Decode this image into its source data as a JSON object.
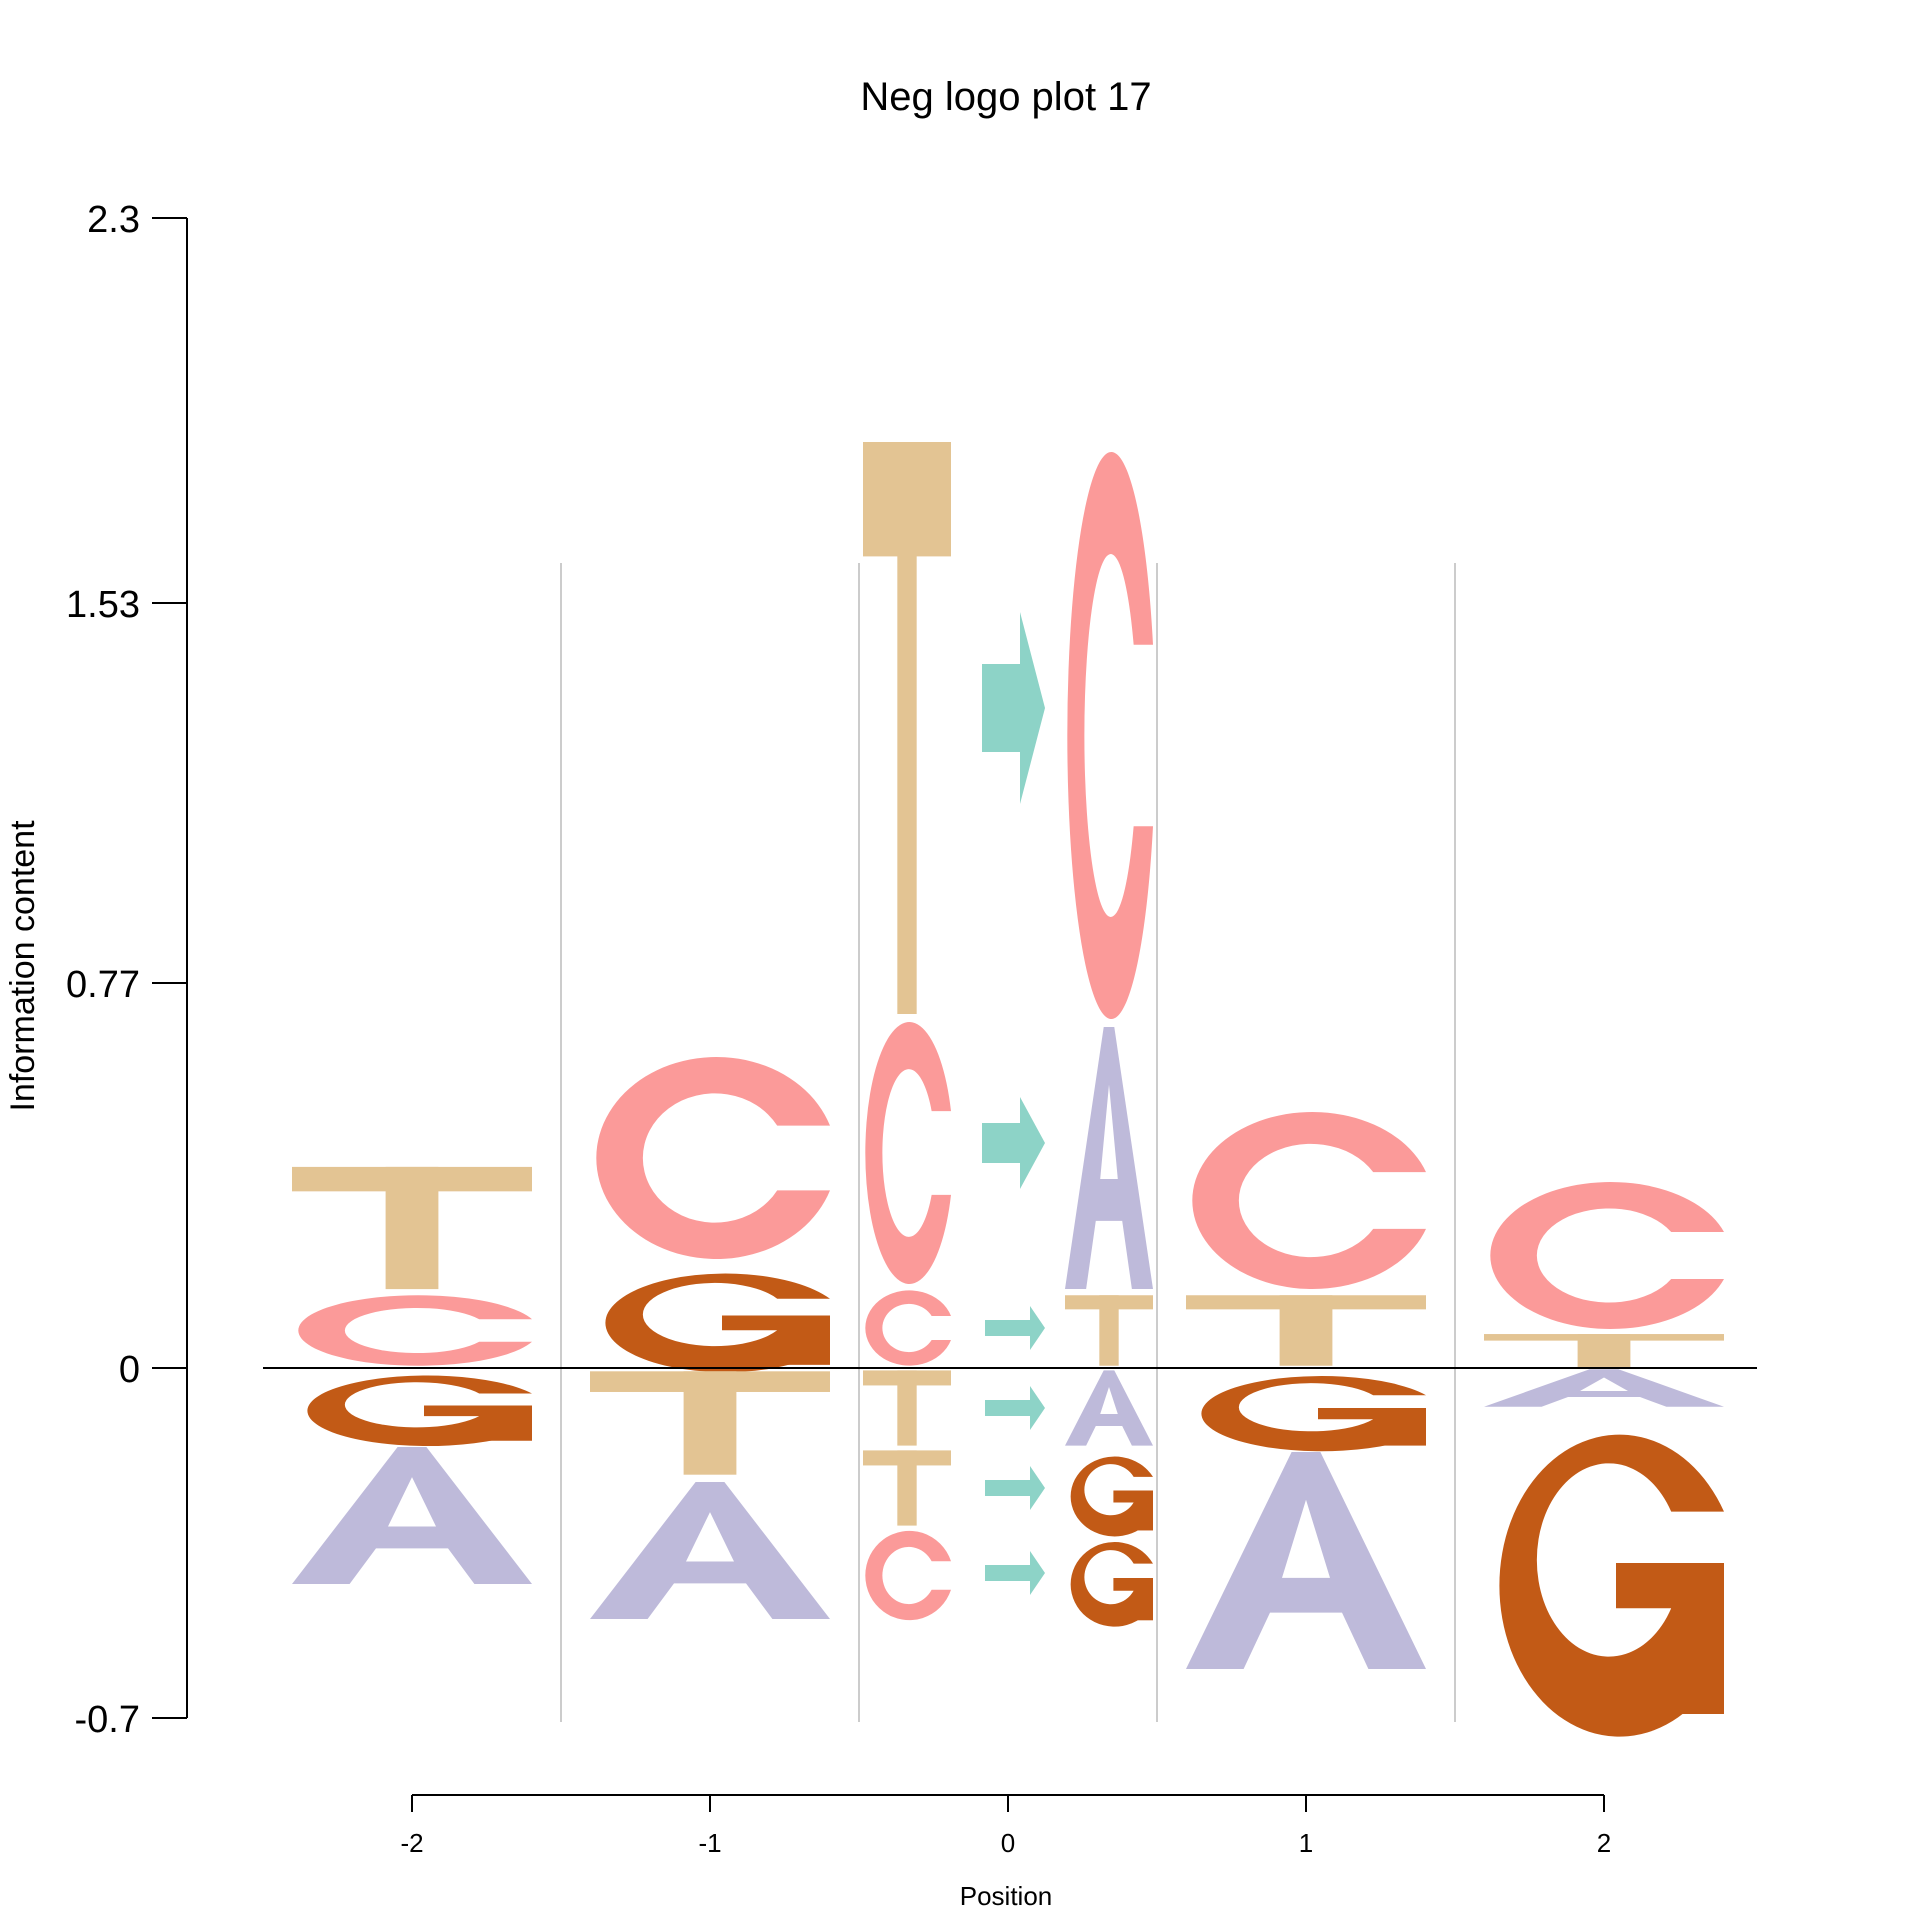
{
  "chart_data": {
    "type": "sequence-logo",
    "title": "Neg logo plot 17",
    "xlabel": "Position",
    "ylabel": "Information content",
    "ylim": [
      -0.7,
      2.3
    ],
    "yticks": [
      "2.3",
      "1.53",
      "0.77",
      "0",
      "-0.7"
    ],
    "xticks": [
      "-2",
      "-1",
      "0",
      "1",
      "2"
    ],
    "colors": {
      "A": "#BEBADA",
      "C": "#FB9A99",
      "G": "#C25A16",
      "T": "#E3C493",
      "arrow": "#8DD3C7"
    },
    "positions": [
      {
        "pos": -2,
        "stacks": [
          {
            "half": "full",
            "up": [
              {
                "letter": "C",
                "value": 0.15
              },
              {
                "letter": "T",
                "value": 0.26
              }
            ],
            "down": [
              {
                "letter": "G",
                "value": 0.15
              },
              {
                "letter": "A",
                "value": 0.29
              }
            ]
          }
        ]
      },
      {
        "pos": -1,
        "stacks": [
          {
            "half": "full",
            "up": [
              {
                "letter": "G",
                "value": 0.21
              },
              {
                "letter": "C",
                "value": 0.42
              }
            ],
            "down": [
              {
                "letter": "T",
                "value": 0.22
              },
              {
                "letter": "A",
                "value": 0.29
              }
            ]
          }
        ]
      },
      {
        "pos": 0,
        "stacks": [
          {
            "half": "left",
            "up": [
              {
                "letter": "C",
                "value": 0.16
              },
              {
                "letter": "C",
                "value": 0.54
              },
              {
                "letter": "T",
                "value": 1.16
              }
            ],
            "down": [
              {
                "letter": "T",
                "value": 0.16
              },
              {
                "letter": "T",
                "value": 0.16
              },
              {
                "letter": "C",
                "value": 0.19
              }
            ]
          },
          {
            "half": "right",
            "up": [
              {
                "letter": "T",
                "value": 0.15
              },
              {
                "letter": "A",
                "value": 0.54
              },
              {
                "letter": "C",
                "value": 1.15
              }
            ],
            "down": [
              {
                "letter": "A",
                "value": 0.16
              },
              {
                "letter": "G",
                "value": 0.17
              },
              {
                "letter": "G",
                "value": 0.18
              }
            ]
          }
        ]
      },
      {
        "pos": 1,
        "stacks": [
          {
            "half": "full",
            "up": [
              {
                "letter": "T",
                "value": 0.15
              },
              {
                "letter": "C",
                "value": 0.37
              }
            ],
            "down": [
              {
                "letter": "G",
                "value": 0.16
              },
              {
                "letter": "A",
                "value": 0.45
              }
            ]
          }
        ]
      },
      {
        "pos": 2,
        "stacks": [
          {
            "half": "full",
            "up": [
              {
                "letter": "T",
                "value": 0.07
              },
              {
                "letter": "C",
                "value": 0.31
              }
            ],
            "down": [
              {
                "letter": "A",
                "value": 0.08
              },
              {
                "letter": "G",
                "value": 0.62
              }
            ]
          }
        ]
      }
    ],
    "arrows": [
      {
        "value": 1.32,
        "size": "large"
      },
      {
        "value": 0.45,
        "size": "medium"
      },
      {
        "value": 0.08,
        "size": "small"
      },
      {
        "value": -0.08,
        "size": "small"
      },
      {
        "value": -0.24,
        "size": "small"
      },
      {
        "value": -0.41,
        "size": "small"
      }
    ],
    "grid": "vertical separators between positions",
    "legend": "none"
  }
}
